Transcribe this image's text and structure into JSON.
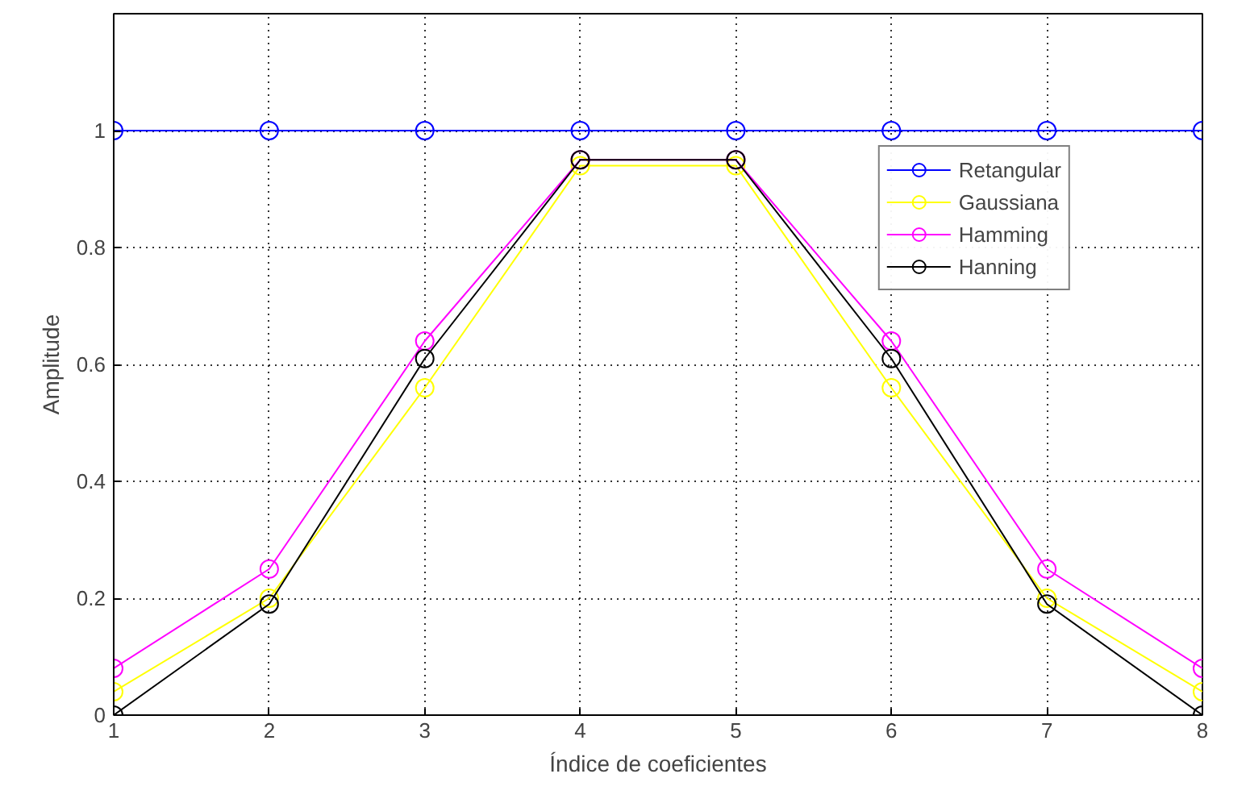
{
  "chart_data": {
    "type": "line",
    "xlabel": "Índice de coeficientes",
    "ylabel": "Amplitude",
    "x": [
      1,
      2,
      3,
      4,
      5,
      6,
      7,
      8
    ],
    "xlim": [
      1,
      8
    ],
    "ylim": [
      0,
      1.2
    ],
    "xticks": [
      1,
      2,
      3,
      4,
      5,
      6,
      7,
      8
    ],
    "yticks": [
      0,
      0.2,
      0.4,
      0.6,
      0.8,
      1,
      {
        "value": 1.2,
        "label": null
      }
    ],
    "grid": true,
    "legend": "top right",
    "marker": "circle",
    "line_style": "solid",
    "series": [
      {
        "name": "Retangular",
        "color": "#0000ff",
        "values": [
          1,
          1,
          1,
          1,
          1,
          1,
          1,
          1
        ]
      },
      {
        "name": "Gaussiana",
        "color": "#ffff00",
        "values": [
          0.04,
          0.2,
          0.56,
          0.94,
          0.94,
          0.56,
          0.2,
          0.04
        ]
      },
      {
        "name": "Hamming",
        "color": "#ff00ff",
        "values": [
          0.08,
          0.25,
          0.64,
          0.95,
          0.95,
          0.64,
          0.25,
          0.08
        ]
      },
      {
        "name": "Hanning",
        "color": "#000000",
        "values": [
          0,
          0.19,
          0.61,
          0.95,
          0.95,
          0.61,
          0.19,
          0
        ]
      }
    ]
  }
}
